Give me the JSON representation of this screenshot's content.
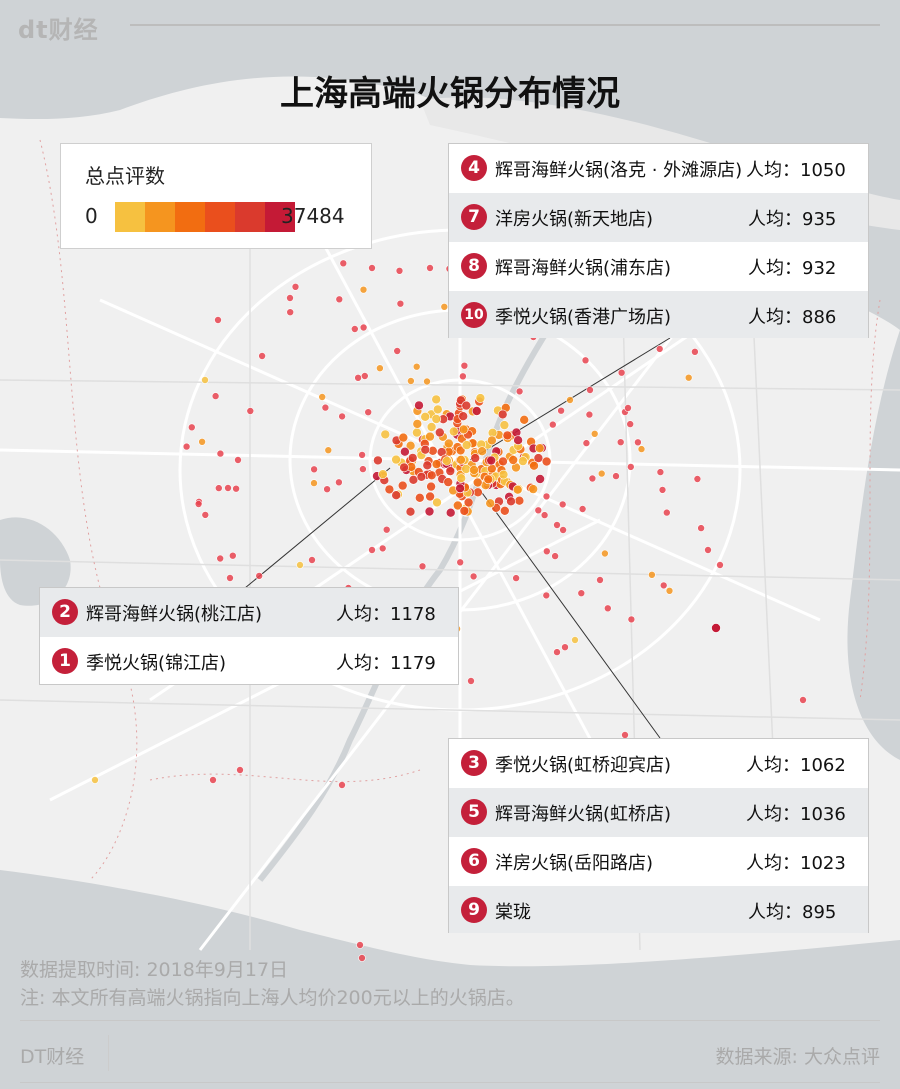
{
  "header": {
    "logo": "dt财经",
    "title": "上海高端火锅分布情况"
  },
  "legend": {
    "title": "总点评数",
    "min": "0",
    "max": "37484",
    "colors": [
      "#f6c140",
      "#f5951f",
      "#f26d11",
      "#ea4f1d",
      "#da3a2d",
      "#c41a36"
    ]
  },
  "panel_top": {
    "rows": [
      {
        "rank": "4",
        "name": "辉哥海鲜火锅(洛克 · 外滩源店)",
        "price": "人均：1050"
      },
      {
        "rank": "7",
        "name": "洋房火锅(新天地店)",
        "price": "人均：935"
      },
      {
        "rank": "8",
        "name": "辉哥海鲜火锅(浦东店)",
        "price": "人均：932"
      },
      {
        "rank": "10",
        "name": "季悦火锅(香港广场店)",
        "price": "人均：886"
      }
    ]
  },
  "panel_left": {
    "rows": [
      {
        "rank": "2",
        "name": "辉哥海鲜火锅(桃江店)",
        "price": "人均：1178"
      },
      {
        "rank": "1",
        "name": "季悦火锅(锦江店)",
        "price": "人均：1179"
      }
    ]
  },
  "panel_bottom": {
    "rows": [
      {
        "rank": "3",
        "name": "季悦火锅(虹桥迎宾店)",
        "price": "人均：1062"
      },
      {
        "rank": "5",
        "name": "辉哥海鲜火锅(虹桥店)",
        "price": "人均：1036"
      },
      {
        "rank": "6",
        "name": "洋房火锅(岳阳路店)",
        "price": "人均：1023"
      },
      {
        "rank": "9",
        "name": "棠珑",
        "price": "人均：895"
      }
    ]
  },
  "footer": {
    "date_note": "数据提取时间: 2018年9月17日",
    "note": "注: 本文所有高端火锅指向上海人均价200元以上的火锅店。",
    "brand": "DT财经",
    "source": "数据来源: 大众点评"
  },
  "colors": {
    "land": "#f0f0f0",
    "water": "#cfd3d6",
    "road": "#ffffff",
    "rank_badge": "#c4203a"
  }
}
